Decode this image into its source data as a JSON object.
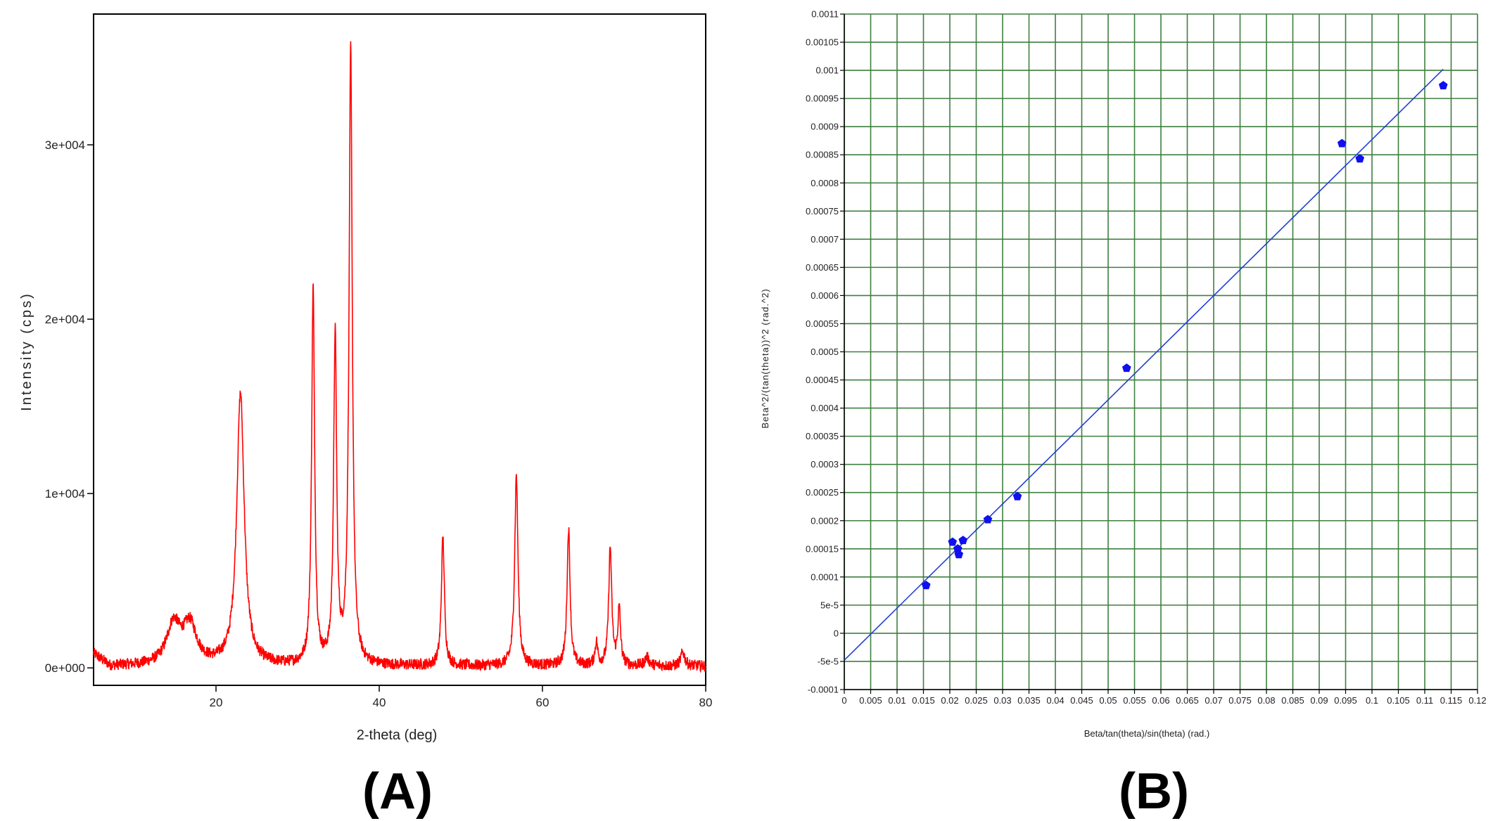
{
  "panel_labels": [
    "(A)",
    "(B)"
  ],
  "chart_data": [
    {
      "type": "line",
      "panel": "(A)",
      "xlabel": "2-theta (deg)",
      "ylabel": "Intensity (cps)",
      "xlim": [
        5,
        80
      ],
      "ylim": [
        -1000,
        37500
      ],
      "x_ticks": [
        20,
        40,
        60,
        80
      ],
      "x_tick_labels": [
        "20",
        "40",
        "60",
        "80"
      ],
      "y_ticks": [
        0,
        10000,
        20000,
        30000
      ],
      "y_tick_labels": [
        "0e+000",
        "1e+004",
        "2e+004",
        "3e+004"
      ],
      "grid": false,
      "line_color": "#ff0000",
      "baseline": 100,
      "peaks": [
        {
          "x": 14.8,
          "y": 2300,
          "w": 1.0
        },
        {
          "x": 16.8,
          "y": 2200,
          "w": 1.0
        },
        {
          "x": 23.0,
          "y": 15600,
          "w": 0.55
        },
        {
          "x": 31.9,
          "y": 21600,
          "w": 0.22
        },
        {
          "x": 34.6,
          "y": 18800,
          "w": 0.22
        },
        {
          "x": 36.5,
          "y": 35200,
          "w": 0.24
        },
        {
          "x": 47.8,
          "y": 7400,
          "w": 0.22
        },
        {
          "x": 56.8,
          "y": 11000,
          "w": 0.24
        },
        {
          "x": 63.2,
          "y": 7900,
          "w": 0.22
        },
        {
          "x": 66.6,
          "y": 1300,
          "w": 0.2
        },
        {
          "x": 68.3,
          "y": 6700,
          "w": 0.22
        },
        {
          "x": 69.4,
          "y": 3200,
          "w": 0.2
        },
        {
          "x": 72.8,
          "y": 500,
          "w": 0.3
        },
        {
          "x": 77.2,
          "y": 800,
          "w": 0.3
        }
      ]
    },
    {
      "type": "scatter",
      "panel": "(B)",
      "xlabel": "Beta/tan(theta)/sin(theta) (rad.)",
      "ylabel": "Beta^2/(tan(theta))^2 (rad.^2)",
      "xlim": [
        0,
        0.12
      ],
      "ylim": [
        -0.0001,
        0.0011
      ],
      "x_ticks": [
        0,
        0.005,
        0.01,
        0.015,
        0.02,
        0.025,
        0.03,
        0.035,
        0.04,
        0.045,
        0.05,
        0.055,
        0.06,
        0.065,
        0.07,
        0.075,
        0.08,
        0.085,
        0.09,
        0.095,
        0.1,
        0.105,
        0.11,
        0.115,
        0.12
      ],
      "x_tick_labels": [
        "0",
        "0.005",
        "0.01",
        "0.015",
        "0.02",
        "0.025",
        "0.03",
        "0.035",
        "0.04",
        "0.045",
        "0.05",
        "0.055",
        "0.06",
        "0.065",
        "0.07",
        "0.075",
        "0.08",
        "0.085",
        "0.09",
        "0.095",
        "0.1",
        "0.105",
        "0.11",
        "0.115",
        "0.12"
      ],
      "y_ticks": [
        -0.0001,
        -5e-05,
        0,
        5e-05,
        0.0001,
        0.00015,
        0.0002,
        0.00025,
        0.0003,
        0.00035,
        0.0004,
        0.00045,
        0.0005,
        0.00055,
        0.0006,
        0.00065,
        0.0007,
        0.00075,
        0.0008,
        0.00085,
        0.0009,
        0.00095,
        0.001,
        0.00105,
        0.0011
      ],
      "y_tick_labels": [
        "-0.0001",
        "-5e-5",
        "0",
        "5e-5",
        "0.0001",
        "0.00015",
        "0.0002",
        "0.00025",
        "0.0003",
        "0.00035",
        "0.0004",
        "0.00045",
        "0.0005",
        "0.00055",
        "0.0006",
        "0.00065",
        "0.0007",
        "0.00075",
        "0.0008",
        "0.00085",
        "0.0009",
        "0.00095",
        "0.001",
        "0.00105",
        "0.0011"
      ],
      "grid": true,
      "grid_color": "#3f7f3f",
      "point_color": "#1010ee",
      "line_color": "#2040d0",
      "points": [
        {
          "x": 0.0155,
          "y": 8.5e-05
        },
        {
          "x": 0.0205,
          "y": 0.000162
        },
        {
          "x": 0.0215,
          "y": 0.00015
        },
        {
          "x": 0.0217,
          "y": 0.00014
        },
        {
          "x": 0.0225,
          "y": 0.000165
        },
        {
          "x": 0.0272,
          "y": 0.000202
        },
        {
          "x": 0.0328,
          "y": 0.000243
        },
        {
          "x": 0.0535,
          "y": 0.000471
        },
        {
          "x": 0.0943,
          "y": 0.00087
        },
        {
          "x": 0.0977,
          "y": 0.000843
        },
        {
          "x": 0.1135,
          "y": 0.000973
        }
      ],
      "fit_line": {
        "x": [
          0,
          0.1135
        ],
        "y": [
          -4.78e-05,
          0.001002
        ]
      }
    }
  ]
}
